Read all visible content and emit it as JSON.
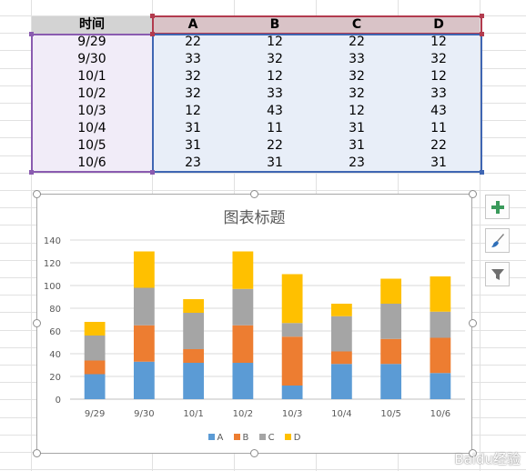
{
  "sheet": {
    "header": [
      "时间",
      "A",
      "B",
      "C",
      "D"
    ],
    "rows": [
      [
        "9/29",
        "22",
        "12",
        "22",
        "12"
      ],
      [
        "9/30",
        "33",
        "32",
        "33",
        "32"
      ],
      [
        "10/1",
        "32",
        "12",
        "32",
        "12"
      ],
      [
        "10/2",
        "32",
        "33",
        "32",
        "33"
      ],
      [
        "10/3",
        "12",
        "43",
        "12",
        "43"
      ],
      [
        "10/4",
        "31",
        "11",
        "31",
        "11"
      ],
      [
        "10/5",
        "31",
        "22",
        "31",
        "22"
      ],
      [
        "10/6",
        "23",
        "31",
        "23",
        "31"
      ]
    ]
  },
  "chart_data": {
    "type": "bar",
    "stacked": true,
    "title": "图表标题",
    "categories": [
      "9/29",
      "9/30",
      "10/1",
      "10/2",
      "10/3",
      "10/4",
      "10/5",
      "10/6"
    ],
    "series": [
      {
        "name": "A",
        "values": [
          22,
          33,
          32,
          32,
          12,
          31,
          31,
          23
        ],
        "color": "#5b9bd5"
      },
      {
        "name": "B",
        "values": [
          12,
          32,
          12,
          33,
          43,
          11,
          22,
          31
        ],
        "color": "#ed7d31"
      },
      {
        "name": "C",
        "values": [
          22,
          33,
          32,
          32,
          12,
          31,
          31,
          23
        ],
        "color": "#a5a5a5"
      },
      {
        "name": "D",
        "values": [
          12,
          32,
          12,
          33,
          43,
          11,
          22,
          31
        ],
        "color": "#ffc000"
      }
    ],
    "ylim": [
      0,
      140
    ],
    "yticks": [
      0,
      20,
      40,
      60,
      80,
      100,
      120,
      140
    ],
    "grid": true,
    "legend": "bottom"
  },
  "tools": {
    "add_icon": "plus-icon",
    "style_icon": "brush-icon",
    "filter_icon": "filter-icon"
  },
  "watermark": "Baidu经验"
}
